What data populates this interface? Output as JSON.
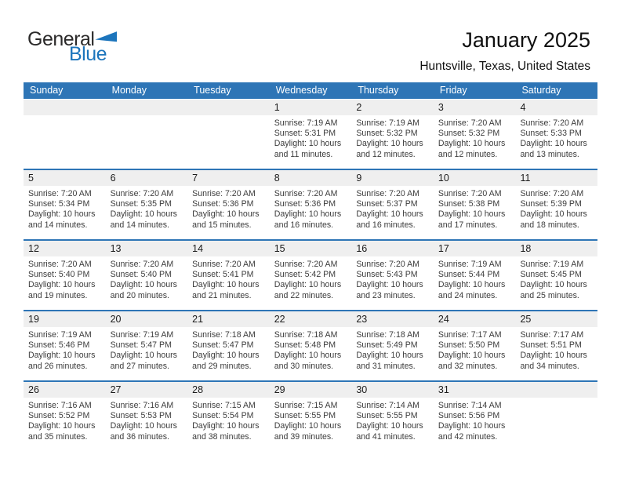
{
  "logo": {
    "part1": "General",
    "part2": "Blue"
  },
  "header": {
    "title": "January 2025",
    "location": "Huntsville, Texas, United States"
  },
  "colors": {
    "accent_blue": "#2E75B6",
    "band_gray": "#EFEFEF",
    "logo_blue": "#1C75BC"
  },
  "calendar": {
    "weekday_headers": [
      "Sunday",
      "Monday",
      "Tuesday",
      "Wednesday",
      "Thursday",
      "Friday",
      "Saturday"
    ],
    "weeks": [
      [
        null,
        null,
        null,
        {
          "day": "1",
          "lines": [
            "Sunrise: 7:19 AM",
            "Sunset: 5:31 PM",
            "Daylight: 10 hours",
            "and 11 minutes."
          ]
        },
        {
          "day": "2",
          "lines": [
            "Sunrise: 7:19 AM",
            "Sunset: 5:32 PM",
            "Daylight: 10 hours",
            "and 12 minutes."
          ]
        },
        {
          "day": "3",
          "lines": [
            "Sunrise: 7:20 AM",
            "Sunset: 5:32 PM",
            "Daylight: 10 hours",
            "and 12 minutes."
          ]
        },
        {
          "day": "4",
          "lines": [
            "Sunrise: 7:20 AM",
            "Sunset: 5:33 PM",
            "Daylight: 10 hours",
            "and 13 minutes."
          ]
        }
      ],
      [
        {
          "day": "5",
          "lines": [
            "Sunrise: 7:20 AM",
            "Sunset: 5:34 PM",
            "Daylight: 10 hours",
            "and 14 minutes."
          ]
        },
        {
          "day": "6",
          "lines": [
            "Sunrise: 7:20 AM",
            "Sunset: 5:35 PM",
            "Daylight: 10 hours",
            "and 14 minutes."
          ]
        },
        {
          "day": "7",
          "lines": [
            "Sunrise: 7:20 AM",
            "Sunset: 5:36 PM",
            "Daylight: 10 hours",
            "and 15 minutes."
          ]
        },
        {
          "day": "8",
          "lines": [
            "Sunrise: 7:20 AM",
            "Sunset: 5:36 PM",
            "Daylight: 10 hours",
            "and 16 minutes."
          ]
        },
        {
          "day": "9",
          "lines": [
            "Sunrise: 7:20 AM",
            "Sunset: 5:37 PM",
            "Daylight: 10 hours",
            "and 16 minutes."
          ]
        },
        {
          "day": "10",
          "lines": [
            "Sunrise: 7:20 AM",
            "Sunset: 5:38 PM",
            "Daylight: 10 hours",
            "and 17 minutes."
          ]
        },
        {
          "day": "11",
          "lines": [
            "Sunrise: 7:20 AM",
            "Sunset: 5:39 PM",
            "Daylight: 10 hours",
            "and 18 minutes."
          ]
        }
      ],
      [
        {
          "day": "12",
          "lines": [
            "Sunrise: 7:20 AM",
            "Sunset: 5:40 PM",
            "Daylight: 10 hours",
            "and 19 minutes."
          ]
        },
        {
          "day": "13",
          "lines": [
            "Sunrise: 7:20 AM",
            "Sunset: 5:40 PM",
            "Daylight: 10 hours",
            "and 20 minutes."
          ]
        },
        {
          "day": "14",
          "lines": [
            "Sunrise: 7:20 AM",
            "Sunset: 5:41 PM",
            "Daylight: 10 hours",
            "and 21 minutes."
          ]
        },
        {
          "day": "15",
          "lines": [
            "Sunrise: 7:20 AM",
            "Sunset: 5:42 PM",
            "Daylight: 10 hours",
            "and 22 minutes."
          ]
        },
        {
          "day": "16",
          "lines": [
            "Sunrise: 7:20 AM",
            "Sunset: 5:43 PM",
            "Daylight: 10 hours",
            "and 23 minutes."
          ]
        },
        {
          "day": "17",
          "lines": [
            "Sunrise: 7:19 AM",
            "Sunset: 5:44 PM",
            "Daylight: 10 hours",
            "and 24 minutes."
          ]
        },
        {
          "day": "18",
          "lines": [
            "Sunrise: 7:19 AM",
            "Sunset: 5:45 PM",
            "Daylight: 10 hours",
            "and 25 minutes."
          ]
        }
      ],
      [
        {
          "day": "19",
          "lines": [
            "Sunrise: 7:19 AM",
            "Sunset: 5:46 PM",
            "Daylight: 10 hours",
            "and 26 minutes."
          ]
        },
        {
          "day": "20",
          "lines": [
            "Sunrise: 7:19 AM",
            "Sunset: 5:47 PM",
            "Daylight: 10 hours",
            "and 27 minutes."
          ]
        },
        {
          "day": "21",
          "lines": [
            "Sunrise: 7:18 AM",
            "Sunset: 5:47 PM",
            "Daylight: 10 hours",
            "and 29 minutes."
          ]
        },
        {
          "day": "22",
          "lines": [
            "Sunrise: 7:18 AM",
            "Sunset: 5:48 PM",
            "Daylight: 10 hours",
            "and 30 minutes."
          ]
        },
        {
          "day": "23",
          "lines": [
            "Sunrise: 7:18 AM",
            "Sunset: 5:49 PM",
            "Daylight: 10 hours",
            "and 31 minutes."
          ]
        },
        {
          "day": "24",
          "lines": [
            "Sunrise: 7:17 AM",
            "Sunset: 5:50 PM",
            "Daylight: 10 hours",
            "and 32 minutes."
          ]
        },
        {
          "day": "25",
          "lines": [
            "Sunrise: 7:17 AM",
            "Sunset: 5:51 PM",
            "Daylight: 10 hours",
            "and 34 minutes."
          ]
        }
      ],
      [
        {
          "day": "26",
          "lines": [
            "Sunrise: 7:16 AM",
            "Sunset: 5:52 PM",
            "Daylight: 10 hours",
            "and 35 minutes."
          ]
        },
        {
          "day": "27",
          "lines": [
            "Sunrise: 7:16 AM",
            "Sunset: 5:53 PM",
            "Daylight: 10 hours",
            "and 36 minutes."
          ]
        },
        {
          "day": "28",
          "lines": [
            "Sunrise: 7:15 AM",
            "Sunset: 5:54 PM",
            "Daylight: 10 hours",
            "and 38 minutes."
          ]
        },
        {
          "day": "29",
          "lines": [
            "Sunrise: 7:15 AM",
            "Sunset: 5:55 PM",
            "Daylight: 10 hours",
            "and 39 minutes."
          ]
        },
        {
          "day": "30",
          "lines": [
            "Sunrise: 7:14 AM",
            "Sunset: 5:55 PM",
            "Daylight: 10 hours",
            "and 41 minutes."
          ]
        },
        {
          "day": "31",
          "lines": [
            "Sunrise: 7:14 AM",
            "Sunset: 5:56 PM",
            "Daylight: 10 hours",
            "and 42 minutes."
          ]
        },
        null
      ]
    ]
  }
}
